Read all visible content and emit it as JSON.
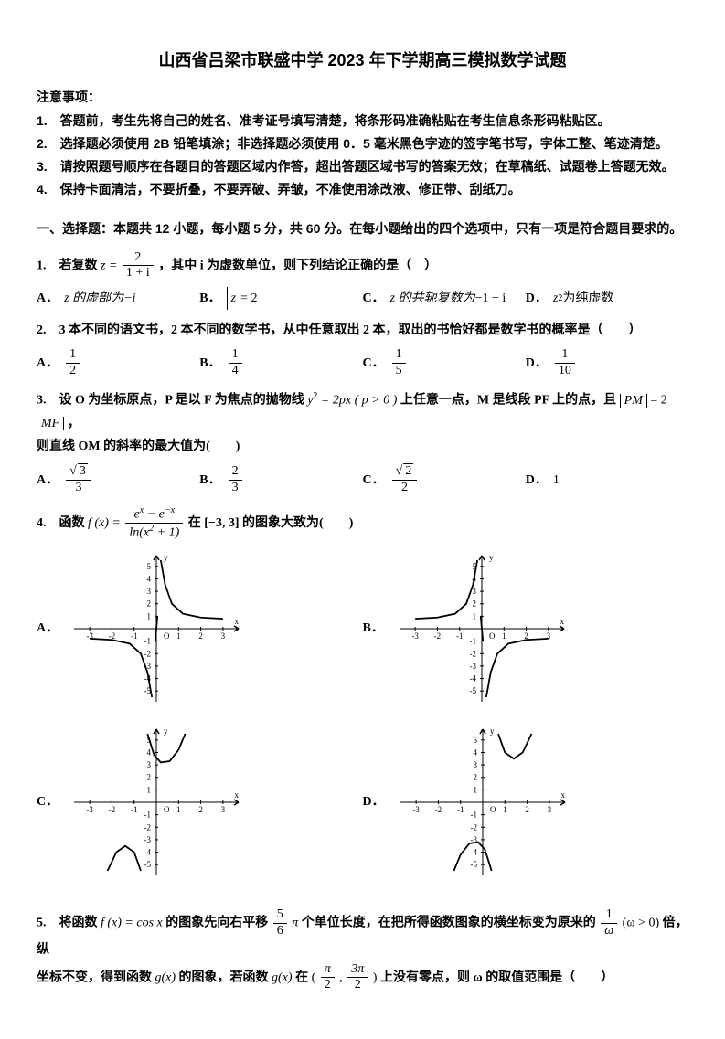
{
  "title": "山西省吕梁市联盛中学 2023 年下学期高三模拟数学试题",
  "instructions_header": "注意事项：",
  "instructions": {
    "i1": "1.　答题前，考生先将自己的姓名、准考证号填写清楚，将条形码准确粘贴在考生信息条形码粘贴区。",
    "i2": "2.　选择题必须使用 2B 铅笔填涂；非选择题必须使用 0．5 毫米黑色字迹的签字笔书写，字体工整、笔迹清楚。",
    "i3": "3.　请按照题号顺序在各题目的答题区域内作答，超出答题区域书写的答案无效；在草稿纸、试题卷上答题无效。",
    "i4": "4.　保持卡面清洁，不要折叠，不要弄破、弄皱，不准使用涂改液、修正带、刮纸刀。"
  },
  "section1_header": "一、选择题：本题共 12 小题，每小题 5 分，共 60 分。在每小题给出的四个选项中，只有一项是符合题目要求的。",
  "q1": {
    "label": "1.　若复数",
    "tail": "，其中 i 为虚数单位，则下列结论正确的是（　）",
    "z_eq": "z =",
    "frac_num": "2",
    "frac_den": "1 + i",
    "opts": {
      "A_lead": "z 的虚部为",
      "A_val": "−i",
      "B_val": "= 2",
      "B_abs": "z",
      "C_lead": "z 的共轭复数为",
      "C_val": "−1 − i",
      "D_lead": "z",
      "D_sup": "2",
      "D_tail": "为纯虚数"
    }
  },
  "q2": {
    "text": "2.　3 本不同的语文书，2 本不同的数学书，从中任意取出 2 本，取出的书恰好都是数学书的概率是（　　）",
    "opts": {
      "A_num": "1",
      "A_den": "2",
      "B_num": "1",
      "B_den": "4",
      "C_num": "1",
      "C_den": "5",
      "D_num": "1",
      "D_den": "10"
    }
  },
  "q3": {
    "lead": "3.　设 O 为坐标原点，P 是以 F 为焦点的抛物线",
    "eqn_lead": "y",
    "eqn_mid": " = 2px ( p > 0 )",
    "mid": "上任意一点，M 是线段 PF 上的点，且",
    "pm": "PM",
    "mf": "MF",
    "eq": " = 2",
    "tail": "，",
    "line2": "则直线 OM 的斜率的最大值为(　　)",
    "opts": {
      "A_num": "3",
      "A_den": "3",
      "B_num": "2",
      "B_den": "3",
      "C_num": "2",
      "C_den": "2",
      "D": "1"
    }
  },
  "q4": {
    "lead": "4.　函数",
    "fx": "f (x) =",
    "num1": "e",
    "num2": " − e",
    "den": "ln(x",
    "den2": " + 1)",
    "tail": "在 [−3, 3] 的图象大致为(　　)"
  },
  "q5": {
    "lead": "5.　将函数",
    "fx": "f (x) = cos x",
    "mid1": "的图象先向右平移",
    "frac1_num": "5",
    "frac1_den": "6",
    "pi1": "π",
    "mid2": "个单位长度，在把所得函数图象的横坐标变为原来的",
    "frac2_num": "1",
    "frac2_den": "ω",
    "omega_cond": "(ω > 0)",
    "mid3": "倍，纵",
    "line2_lead": "坐标不变，得到函数",
    "gx": "g(x)",
    "line2_mid": "的图象，若函数",
    "line2_mid2": "在",
    "interval_l": "(",
    "interval_num1": "π",
    "interval_den1": "2",
    "interval_comma": ", ",
    "interval_num2": "3π",
    "interval_den2": "2",
    "interval_r": ")",
    "line2_tail": "上没有零点，则 ω 的取值范围是（　　）"
  },
  "labels": {
    "A": "A．",
    "B": "B．",
    "C": "C．",
    "D": "D．"
  },
  "graph": {
    "axis_color": "#000000",
    "curve_color": "#000000",
    "width": 190,
    "height": 170,
    "xticks": [
      "-3",
      "-2",
      "-1",
      "1",
      "2",
      "3"
    ],
    "yticks_pos": [
      "1",
      "2",
      "3",
      "4",
      "5"
    ],
    "yticks_neg": [
      "-1",
      "-2",
      "-3",
      "-4",
      "-5"
    ],
    "origin": "O",
    "xlabel": "x",
    "ylabel": "y"
  }
}
